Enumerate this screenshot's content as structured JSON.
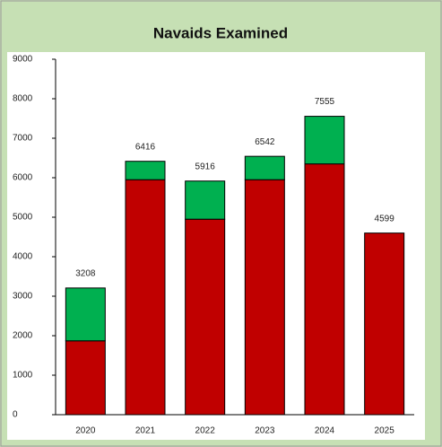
{
  "chart_data": {
    "type": "stacked-bar",
    "title": "Navaids Examined",
    "categories": [
      "2020",
      "2021",
      "2022",
      "2023",
      "2024",
      "2025"
    ],
    "series": [
      {
        "color": "#c00000",
        "values": [
          1870,
          5950,
          4950,
          5950,
          6350,
          4599
        ]
      },
      {
        "color": "#00b050",
        "values": [
          1338,
          466,
          966,
          592,
          1205,
          0
        ]
      }
    ],
    "totals": [
      3208,
      6416,
      5916,
      6542,
      7555,
      4599
    ],
    "ylim": [
      0,
      9000
    ],
    "yticks": [
      0,
      1000,
      2000,
      3000,
      4000,
      5000,
      6000,
      7000,
      8000,
      9000
    ],
    "grid": false
  }
}
